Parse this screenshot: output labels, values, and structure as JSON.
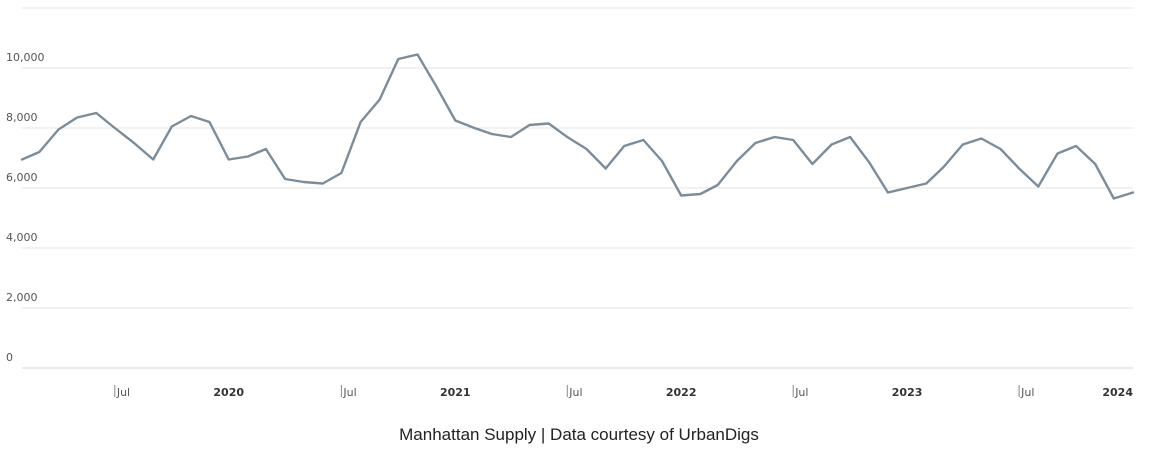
{
  "caption": "Manhattan Supply | Data courtesy of UrbanDigs",
  "colors": {
    "line": "#7d8c99",
    "grid": "#e6e6e6",
    "text": "#555555"
  },
  "chart_data": {
    "type": "line",
    "title": "",
    "xlabel": "",
    "ylabel": "",
    "ylim": [
      0,
      12000
    ],
    "xlim": [
      "2019-02-01",
      "2024-01-01"
    ],
    "grid": true,
    "y_ticks": [
      {
        "value": 0,
        "label": "0"
      },
      {
        "value": 2000,
        "label": "2,000"
      },
      {
        "value": 4000,
        "label": "4,000"
      },
      {
        "value": 6000,
        "label": "6,000"
      },
      {
        "value": 8000,
        "label": "8,000"
      },
      {
        "value": 10000,
        "label": "10,000"
      }
    ],
    "x_ticks": [
      {
        "date": "2019-07-01",
        "label": "Jul",
        "major": false
      },
      {
        "date": "2020-01-01",
        "label": "2020",
        "major": true
      },
      {
        "date": "2020-07-01",
        "label": "Jul",
        "major": false
      },
      {
        "date": "2021-01-01",
        "label": "2021",
        "major": true
      },
      {
        "date": "2021-07-01",
        "label": "Jul",
        "major": false
      },
      {
        "date": "2022-01-01",
        "label": "2022",
        "major": true
      },
      {
        "date": "2022-07-01",
        "label": "Jul",
        "major": false
      },
      {
        "date": "2023-01-01",
        "label": "2023",
        "major": true
      },
      {
        "date": "2023-07-01",
        "label": "Jul",
        "major": false
      },
      {
        "date": "2024-01-01",
        "label": "2024",
        "major": true
      }
    ],
    "series": [
      {
        "x": [
          "2019-02-01",
          "2019-03-01",
          "2019-04-01",
          "2019-05-01",
          "2019-06-01",
          "2019-07-01",
          "2019-08-01",
          "2019-09-01",
          "2019-10-01",
          "2019-11-01",
          "2019-12-01",
          "2020-01-01",
          "2020-02-01",
          "2020-03-01",
          "2020-04-01",
          "2020-05-01",
          "2020-06-01",
          "2020-07-01",
          "2020-08-01",
          "2020-09-01",
          "2020-10-01",
          "2020-11-01",
          "2020-12-01",
          "2021-01-01",
          "2021-02-01",
          "2021-03-01",
          "2021-04-01",
          "2021-05-01",
          "2021-06-01",
          "2021-07-01",
          "2021-08-01",
          "2021-09-01",
          "2021-10-01",
          "2021-11-01",
          "2021-12-01",
          "2022-01-01",
          "2022-02-01",
          "2022-03-01",
          "2022-04-01",
          "2022-05-01",
          "2022-06-01",
          "2022-07-01",
          "2022-08-01",
          "2022-09-01",
          "2022-10-01",
          "2022-11-01",
          "2022-12-01",
          "2023-01-01",
          "2023-02-01",
          "2023-03-01",
          "2023-04-01",
          "2023-05-01",
          "2023-06-01",
          "2023-07-01",
          "2023-08-01",
          "2023-09-01",
          "2023-10-01",
          "2023-11-01",
          "2023-12-01",
          "2024-01-01"
        ],
        "values": [
          6950,
          7200,
          7950,
          8350,
          8500,
          8000,
          7500,
          6950,
          8050,
          8400,
          8200,
          6950,
          7050,
          7300,
          6300,
          6200,
          6150,
          6500,
          8200,
          8950,
          10300,
          10450,
          9400,
          8250,
          8000,
          7800,
          7700,
          8100,
          8150,
          7700,
          7300,
          6650,
          7400,
          7600,
          6900,
          5750,
          5800,
          6100,
          6900,
          7500,
          7700,
          7600,
          6800,
          7450,
          7700,
          6850,
          5850,
          6000,
          6150,
          6700,
          7450,
          7650,
          7300,
          6650,
          6050,
          7150,
          7400,
          6800,
          5650,
          5850
        ]
      }
    ]
  }
}
